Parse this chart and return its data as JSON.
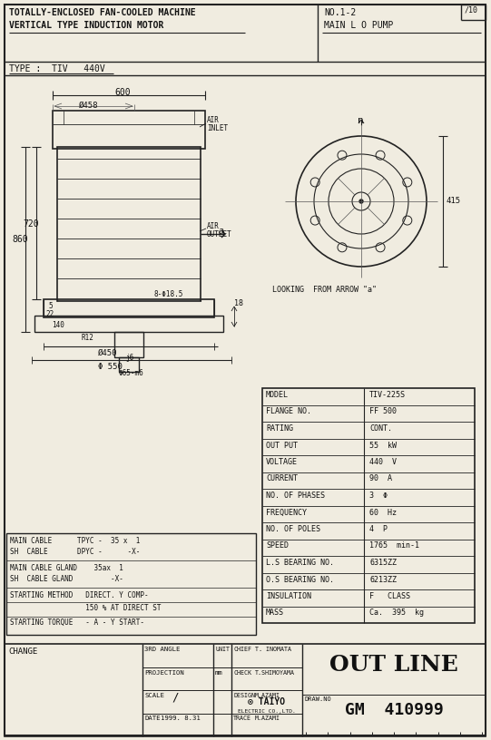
{
  "bg_color": "#f0ece0",
  "border_color": "#222222",
  "title_line1": "TOTALLY-ENCLOSED FAN-COOLED MACHINE",
  "title_line2": "VERTICAL TYPE INDUCTION MOTOR",
  "no_label": "NO.1-2",
  "pump_label": "MAIN L O PUMP",
  "type_label": "TYPE :  TIV   440V",
  "spec_table": {
    "rows": [
      [
        "MODEL",
        "TIV-225S"
      ],
      [
        "FLANGE NO.",
        "FF 500"
      ],
      [
        "RATING",
        "CONT."
      ],
      [
        "OUT PUT",
        "55  kW"
      ],
      [
        "VOLTAGE",
        "440  V"
      ],
      [
        "CURRENT",
        "90  A"
      ],
      [
        "NO. OF PHASES",
        "3  Φ"
      ],
      [
        "FREQUENCY",
        "60  Hz"
      ],
      [
        "NO. OF POLES",
        "4  P"
      ],
      [
        "SPEED",
        "1765  min-1"
      ],
      [
        "L.S BEARING NO.",
        "6315ZZ"
      ],
      [
        "O.S BEARING NO.",
        "6213ZZ"
      ],
      [
        "INSULATION",
        "F   CLASS"
      ],
      [
        "MASS",
        "Ca.  395  kg"
      ]
    ]
  },
  "cable_lines": [
    "MAIN CABLE      TPYC -  35 x  1",
    "SH  CABLE       DPYC -      -X-",
    "MAIN CABLE GLAND    35ax  1",
    "SH  CABLE GLAND         -X-",
    "STARTING METHOD   DIRECT. Y COMP-",
    "                  150 % AT DIRECT ST",
    "STARTING TORQUE   - A - Y START-"
  ],
  "footer": {
    "change_label": "CHANGE",
    "title_footer": "OUT LINE",
    "draw_no_label": "DRAW.NO",
    "draw_no": "GM  410999"
  }
}
